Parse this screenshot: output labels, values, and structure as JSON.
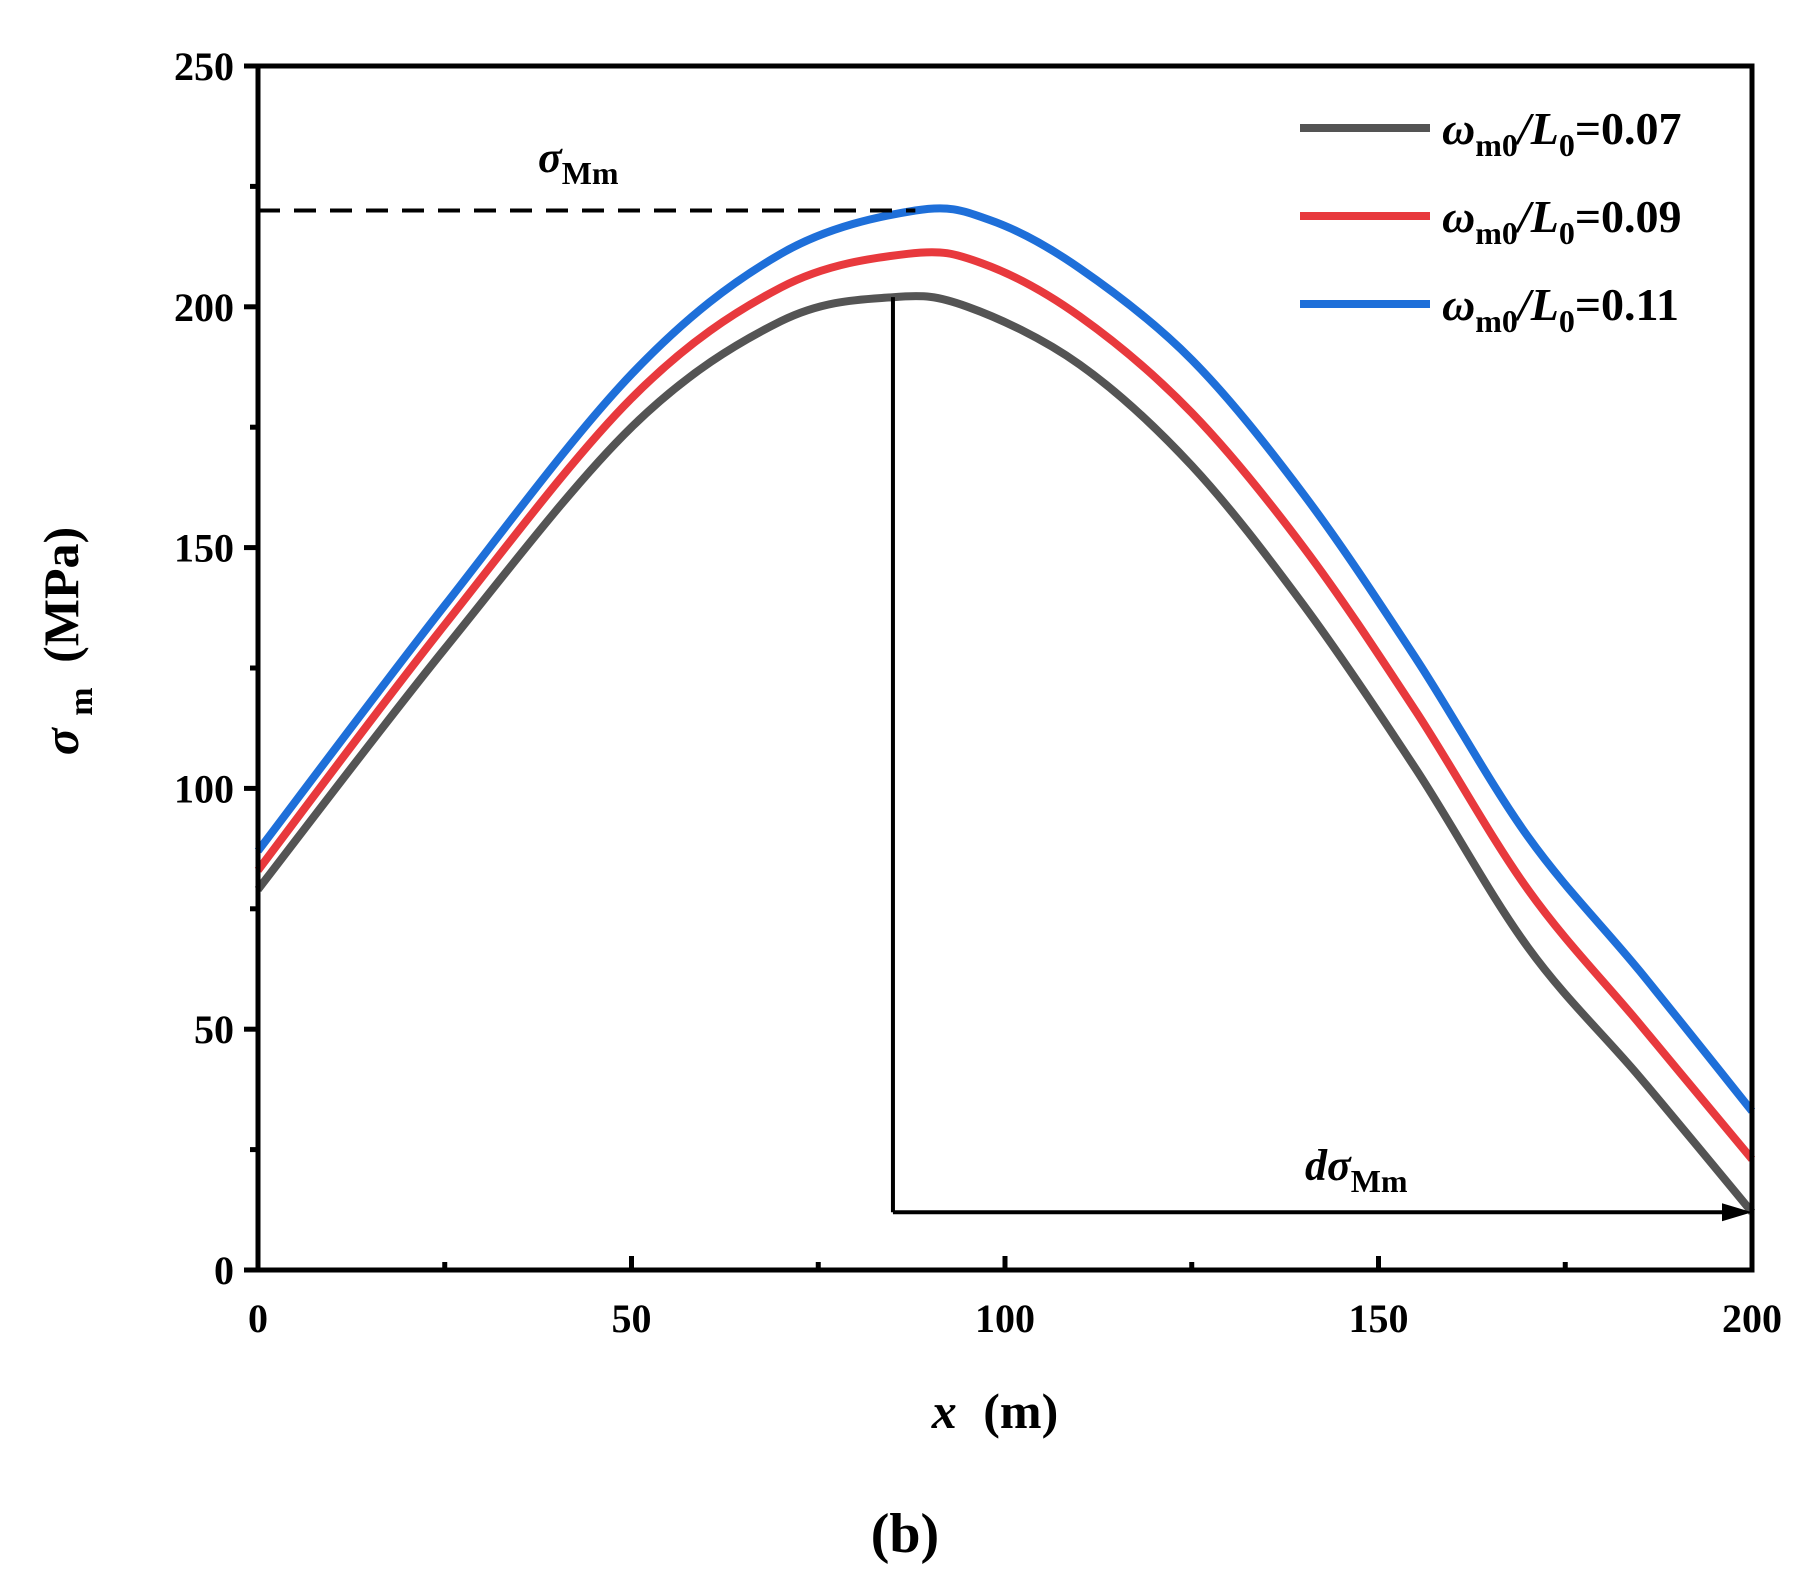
{
  "chart_data": {
    "type": "line",
    "panel_label": "(b)",
    "xlabel_var": "x",
    "xlabel_unit": "(m)",
    "ylabel_var": "σ",
    "ylabel_sub": "m",
    "ylabel_unit": "(MPa)",
    "xlim": [
      0,
      200
    ],
    "ylim": [
      0,
      250
    ],
    "xticks": [
      "0",
      "50",
      "100",
      "150",
      "200"
    ],
    "yticks": [
      "0",
      "50",
      "100",
      "150",
      "200",
      "250"
    ],
    "legend_position": "top-right",
    "series": [
      {
        "name": "ω_m0/L_0=0.07",
        "legend_var": "ω",
        "legend_sub1": "m0",
        "legend_mid": "/L",
        "legend_sub2": "0",
        "legend_val": "=0.07",
        "color": "#545454",
        "x": [
          0,
          25,
          50,
          70,
          85,
          95,
          110,
          125,
          140,
          155,
          170,
          185,
          200
        ],
        "y": [
          79,
          129,
          175,
          197,
          202,
          200,
          188,
          167,
          138,
          104,
          67,
          40,
          12
        ]
      },
      {
        "name": "ω_m0/L_0=0.09",
        "legend_var": "ω",
        "legend_sub1": "m0",
        "legend_mid": "/L",
        "legend_sub2": "0",
        "legend_val": "=0.09",
        "color": "#e8393d",
        "x": [
          0,
          25,
          50,
          70,
          87,
          97,
          110,
          125,
          140,
          155,
          170,
          185,
          200
        ],
        "y": [
          83,
          134,
          181,
          204,
          211,
          209,
          198,
          178,
          150,
          116,
          79,
          51,
          23
        ]
      },
      {
        "name": "ω_m0/L_0=0.11",
        "legend_var": "ω",
        "legend_sub1": "m0",
        "legend_mid": "/L",
        "legend_sub2": "0",
        "legend_val": "=0.11",
        "color": "#1e6fd9",
        "x": [
          0,
          25,
          50,
          70,
          88,
          98,
          110,
          125,
          140,
          155,
          170,
          185,
          200
        ],
        "y": [
          87,
          138,
          186,
          211,
          220,
          218,
          208,
          189,
          161,
          127,
          90,
          62,
          33
        ]
      }
    ],
    "annotations": {
      "sigma_Mm_var": "σ",
      "sigma_Mm_sub": "Mm",
      "sigma_Mm_value": 220,
      "dsigma_prefix": "d",
      "dsigma_var": "σ",
      "dsigma_sub": "Mm",
      "vertical_line_x": 85,
      "vertical_line_top": 202,
      "arrow_y": 12,
      "arrow_from_x": 85,
      "arrow_to_x": 200
    }
  }
}
